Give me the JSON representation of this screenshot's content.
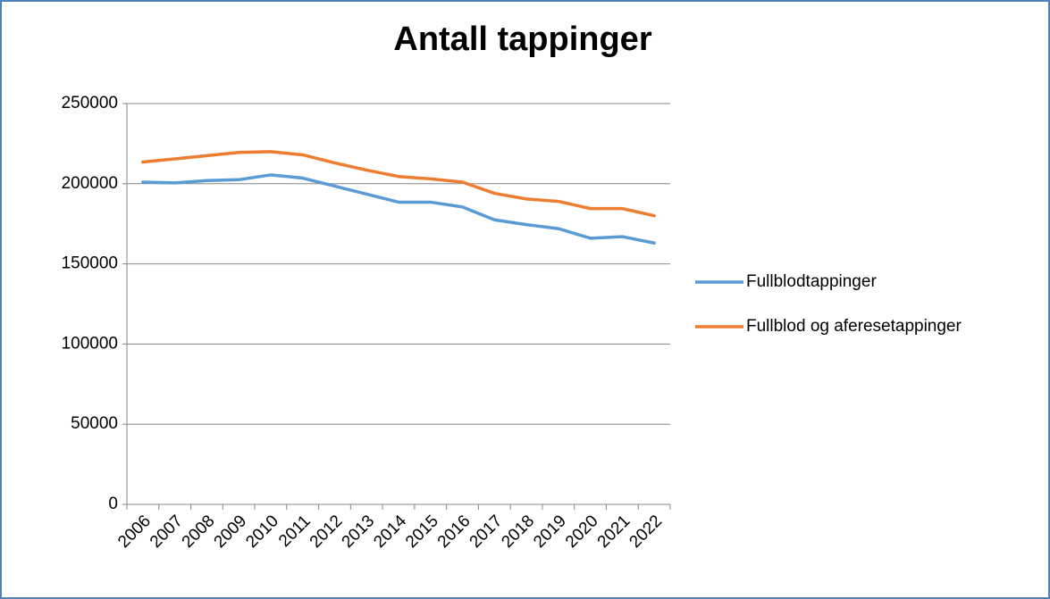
{
  "chart_data": {
    "type": "line",
    "title": "Antall tappinger",
    "categories": [
      "2006",
      "2007",
      "2008",
      "2009",
      "2010",
      "2011",
      "2012",
      "2013",
      "2014",
      "2015",
      "2016",
      "2017",
      "2018",
      "2019",
      "2020",
      "2021",
      "2022"
    ],
    "series": [
      {
        "name": "Fullblodtappinger",
        "color": "#5b9bd5",
        "values": [
          201000,
          200500,
          202000,
          202500,
          205500,
          203500,
          198500,
          193500,
          188500,
          188500,
          185500,
          177500,
          174500,
          172000,
          166000,
          167000,
          163000
        ]
      },
      {
        "name": "Fullblod og aferesetappinger",
        "color": "#ed7d31",
        "values": [
          213500,
          215500,
          217500,
          219500,
          220000,
          218000,
          213000,
          208500,
          204500,
          203000,
          201000,
          194000,
          190500,
          189000,
          184500,
          184500,
          180000
        ]
      }
    ],
    "ylim": [
      0,
      250000
    ],
    "yticks": [
      0,
      50000,
      100000,
      150000,
      200000,
      250000
    ],
    "grid": true,
    "legend": "right"
  }
}
